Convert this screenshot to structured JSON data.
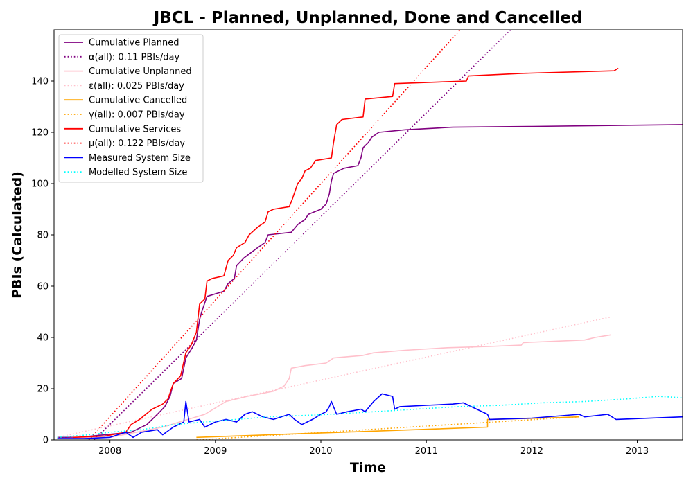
{
  "chart_data": {
    "type": "line",
    "title": "JBCL - Planned, Unplanned, Done  and Cancelled",
    "xlabel": "Time",
    "ylabel": "PBIs (Calculated)",
    "xlim": [
      2007.47,
      2013.43
    ],
    "ylim": [
      0,
      160
    ],
    "xticks": [
      2008,
      2009,
      2010,
      2011,
      2012,
      2013
    ],
    "yticks": [
      0,
      20,
      40,
      60,
      80,
      100,
      120,
      140
    ],
    "grid": false,
    "legend_position": "top-left",
    "series": [
      {
        "name": "Cumulative Planned",
        "color": "#800080",
        "style": "solid",
        "points": [
          [
            2007.5,
            1
          ],
          [
            2007.7,
            1
          ],
          [
            2007.95,
            2
          ],
          [
            2008.2,
            3
          ],
          [
            2008.35,
            6
          ],
          [
            2008.45,
            10
          ],
          [
            2008.52,
            13
          ],
          [
            2008.57,
            17
          ],
          [
            2008.6,
            22
          ],
          [
            2008.68,
            24
          ],
          [
            2008.72,
            32
          ],
          [
            2008.78,
            36
          ],
          [
            2008.82,
            39
          ],
          [
            2008.85,
            47
          ],
          [
            2008.87,
            50
          ],
          [
            2008.92,
            56
          ],
          [
            2009.08,
            58
          ],
          [
            2009.12,
            61
          ],
          [
            2009.18,
            63
          ],
          [
            2009.2,
            68
          ],
          [
            2009.27,
            71
          ],
          [
            2009.4,
            75
          ],
          [
            2009.47,
            77
          ],
          [
            2009.5,
            80
          ],
          [
            2009.72,
            81
          ],
          [
            2009.78,
            84
          ],
          [
            2009.85,
            86
          ],
          [
            2009.88,
            88
          ],
          [
            2010.0,
            90
          ],
          [
            2010.05,
            92
          ],
          [
            2010.08,
            96
          ],
          [
            2010.1,
            101
          ],
          [
            2010.12,
            104
          ],
          [
            2010.22,
            106
          ],
          [
            2010.35,
            107
          ],
          [
            2010.38,
            110
          ],
          [
            2010.4,
            114
          ],
          [
            2010.45,
            116
          ],
          [
            2010.48,
            118
          ],
          [
            2010.55,
            120
          ],
          [
            2010.8,
            121
          ],
          [
            2011.25,
            122
          ],
          [
            2012.0,
            122.3
          ],
          [
            2013.43,
            123
          ]
        ]
      },
      {
        "name": "α(all): 0.11 PBIs/day",
        "color": "#800080",
        "style": "dotted",
        "points": [
          [
            2007.85,
            0
          ],
          [
            2011.8,
            160
          ]
        ]
      },
      {
        "name": "Cumulative Unplanned",
        "color": "#ffc0cb",
        "style": "solid",
        "points": [
          [
            2007.5,
            0.5
          ],
          [
            2008.0,
            1
          ],
          [
            2008.5,
            5
          ],
          [
            2008.9,
            10
          ],
          [
            2009.1,
            15
          ],
          [
            2009.3,
            17
          ],
          [
            2009.55,
            19
          ],
          [
            2009.65,
            21
          ],
          [
            2009.7,
            24
          ],
          [
            2009.72,
            28
          ],
          [
            2009.85,
            29
          ],
          [
            2010.05,
            30
          ],
          [
            2010.12,
            32
          ],
          [
            2010.4,
            33
          ],
          [
            2010.5,
            34
          ],
          [
            2010.8,
            35
          ],
          [
            2011.2,
            36
          ],
          [
            2011.6,
            36.5
          ],
          [
            2011.9,
            37
          ],
          [
            2011.92,
            38
          ],
          [
            2012.5,
            39
          ],
          [
            2012.6,
            40
          ],
          [
            2012.75,
            41
          ]
        ]
      },
      {
        "name": "ε(all): 0.025 PBIs/day",
        "color": "#ffc0cb",
        "style": "dotted",
        "points": [
          [
            2007.5,
            1
          ],
          [
            2012.75,
            48
          ]
        ]
      },
      {
        "name": "Cumulative Cancelled",
        "color": "#ffa500",
        "style": "solid",
        "points": [
          [
            2008.82,
            1
          ],
          [
            2009.5,
            2
          ],
          [
            2010.2,
            3
          ],
          [
            2010.9,
            4
          ],
          [
            2011.58,
            5
          ],
          [
            2011.58,
            8
          ],
          [
            2012.1,
            8.5
          ],
          [
            2012.45,
            9
          ]
        ]
      },
      {
        "name": "γ(all): 0.007 PBIs/day",
        "color": "#ffa500",
        "style": "dotted",
        "points": [
          [
            2008.82,
            0
          ],
          [
            2012.45,
            9
          ]
        ]
      },
      {
        "name": "Cumulative Services",
        "color": "#ff0000",
        "style": "solid",
        "points": [
          [
            2007.65,
            1
          ],
          [
            2007.95,
            1.5
          ],
          [
            2008.15,
            3
          ],
          [
            2008.2,
            6
          ],
          [
            2008.28,
            8
          ],
          [
            2008.4,
            12
          ],
          [
            2008.5,
            14
          ],
          [
            2008.55,
            16
          ],
          [
            2008.6,
            22
          ],
          [
            2008.67,
            25
          ],
          [
            2008.72,
            34
          ],
          [
            2008.77,
            37
          ],
          [
            2008.82,
            42
          ],
          [
            2008.85,
            53
          ],
          [
            2008.9,
            55
          ],
          [
            2008.92,
            62
          ],
          [
            2008.97,
            63
          ],
          [
            2009.08,
            64
          ],
          [
            2009.12,
            70
          ],
          [
            2009.17,
            72
          ],
          [
            2009.2,
            75
          ],
          [
            2009.28,
            77
          ],
          [
            2009.32,
            80
          ],
          [
            2009.4,
            83
          ],
          [
            2009.47,
            85
          ],
          [
            2009.5,
            89
          ],
          [
            2009.55,
            90
          ],
          [
            2009.7,
            91
          ],
          [
            2009.73,
            94
          ],
          [
            2009.78,
            100
          ],
          [
            2009.82,
            102
          ],
          [
            2009.85,
            105
          ],
          [
            2009.9,
            106
          ],
          [
            2009.95,
            109
          ],
          [
            2010.1,
            110
          ],
          [
            2010.12,
            116
          ],
          [
            2010.15,
            123
          ],
          [
            2010.2,
            125
          ],
          [
            2010.4,
            126
          ],
          [
            2010.42,
            133
          ],
          [
            2010.68,
            134
          ],
          [
            2010.7,
            139
          ],
          [
            2011.38,
            140
          ],
          [
            2011.4,
            142
          ],
          [
            2011.9,
            143
          ],
          [
            2012.78,
            144
          ],
          [
            2012.82,
            145
          ]
        ]
      },
      {
        "name": "μ(all): 0.122 PBIs/day",
        "color": "#ff0000",
        "style": "dotted",
        "points": [
          [
            2007.8,
            0
          ],
          [
            2011.32,
            160
          ]
        ]
      },
      {
        "name": "Measured System Size",
        "color": "#0000ff",
        "style": "solid",
        "points": [
          [
            2007.5,
            0.5
          ],
          [
            2007.75,
            0.5
          ],
          [
            2008.0,
            1
          ],
          [
            2008.15,
            3
          ],
          [
            2008.22,
            1
          ],
          [
            2008.3,
            3
          ],
          [
            2008.45,
            4
          ],
          [
            2008.5,
            2
          ],
          [
            2008.6,
            5
          ],
          [
            2008.7,
            7
          ],
          [
            2008.72,
            15
          ],
          [
            2008.75,
            7
          ],
          [
            2008.85,
            8
          ],
          [
            2008.9,
            5
          ],
          [
            2009.0,
            7
          ],
          [
            2009.1,
            8
          ],
          [
            2009.2,
            7
          ],
          [
            2009.28,
            10
          ],
          [
            2009.35,
            11
          ],
          [
            2009.45,
            9
          ],
          [
            2009.55,
            8
          ],
          [
            2009.7,
            10
          ],
          [
            2009.75,
            8
          ],
          [
            2009.82,
            6
          ],
          [
            2009.92,
            8
          ],
          [
            2010.0,
            10
          ],
          [
            2010.05,
            11
          ],
          [
            2010.08,
            13
          ],
          [
            2010.1,
            15
          ],
          [
            2010.15,
            10
          ],
          [
            2010.25,
            11
          ],
          [
            2010.38,
            12
          ],
          [
            2010.42,
            11
          ],
          [
            2010.5,
            15
          ],
          [
            2010.58,
            18
          ],
          [
            2010.68,
            17
          ],
          [
            2010.7,
            12
          ],
          [
            2010.75,
            13
          ],
          [
            2011.0,
            13.5
          ],
          [
            2011.25,
            14
          ],
          [
            2011.35,
            14.5
          ],
          [
            2011.58,
            10
          ],
          [
            2011.6,
            8
          ],
          [
            2012.0,
            8.5
          ],
          [
            2012.45,
            10
          ],
          [
            2012.5,
            9
          ],
          [
            2012.72,
            10
          ],
          [
            2012.8,
            8
          ],
          [
            2013.43,
            9
          ]
        ]
      },
      {
        "name": "Modelled System Size",
        "color": "#00ffff",
        "style": "dotted",
        "points": [
          [
            2007.5,
            1
          ],
          [
            2007.8,
            2
          ],
          [
            2008.0,
            3
          ],
          [
            2008.3,
            4
          ],
          [
            2008.6,
            6
          ],
          [
            2008.9,
            7
          ],
          [
            2009.2,
            8
          ],
          [
            2009.5,
            9
          ],
          [
            2009.8,
            9.5
          ],
          [
            2010.1,
            10
          ],
          [
            2010.5,
            11
          ],
          [
            2010.9,
            12
          ],
          [
            2011.3,
            13
          ],
          [
            2011.7,
            13.5
          ],
          [
            2012.1,
            14.5
          ],
          [
            2012.5,
            15
          ],
          [
            2012.9,
            16
          ],
          [
            2013.2,
            17
          ],
          [
            2013.43,
            16.5
          ]
        ]
      }
    ]
  }
}
